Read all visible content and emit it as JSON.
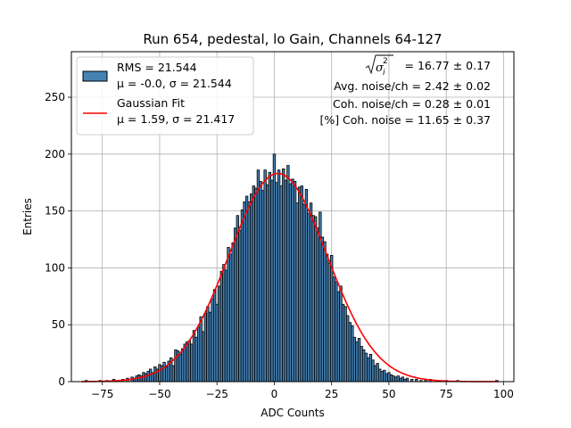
{
  "chart_data": {
    "type": "bar",
    "title": "Run 654, pedestal, lo Gain, Channels 64-127",
    "xlabel": "ADC Counts",
    "ylabel": "Entries",
    "xlim": [
      -88.5,
      104.5
    ],
    "ylim": [
      0,
      290
    ],
    "x_ticks": [
      "−75",
      "−50",
      "−25",
      "0",
      "25",
      "50",
      "75",
      "100"
    ],
    "y_ticks": [
      "0",
      "50",
      "100",
      "150",
      "200",
      "250"
    ],
    "x_tick_values": [
      -75,
      -50,
      -25,
      0,
      25,
      50,
      75,
      100
    ],
    "y_tick_values": [
      0,
      50,
      100,
      150,
      200,
      250
    ],
    "grid": true,
    "legend_position": "top-left",
    "histogram": {
      "name": "RMS = 21.544",
      "subtitle": "μ = -0.0, σ = 21.544",
      "color": "#4682b4",
      "bin_width": 1,
      "bins": [
        {
          "x": -82,
          "y": 1
        },
        {
          "x": -76,
          "y": 1
        },
        {
          "x": -73,
          "y": 1
        },
        {
          "x": -70,
          "y": 2
        },
        {
          "x": -68,
          "y": 1
        },
        {
          "x": -66,
          "y": 2
        },
        {
          "x": -64,
          "y": 3
        },
        {
          "x": -62,
          "y": 4
        },
        {
          "x": -61,
          "y": 3
        },
        {
          "x": -60,
          "y": 5
        },
        {
          "x": -59,
          "y": 6
        },
        {
          "x": -58,
          "y": 5
        },
        {
          "x": -57,
          "y": 8
        },
        {
          "x": -56,
          "y": 7
        },
        {
          "x": -55,
          "y": 9
        },
        {
          "x": -54,
          "y": 11
        },
        {
          "x": -53,
          "y": 8
        },
        {
          "x": -52,
          "y": 13
        },
        {
          "x": -51,
          "y": 11
        },
        {
          "x": -50,
          "y": 15
        },
        {
          "x": -49,
          "y": 14
        },
        {
          "x": -48,
          "y": 17
        },
        {
          "x": -47,
          "y": 13
        },
        {
          "x": -46,
          "y": 18
        },
        {
          "x": -45,
          "y": 21
        },
        {
          "x": -44,
          "y": 14
        },
        {
          "x": -43,
          "y": 28
        },
        {
          "x": -42,
          "y": 27
        },
        {
          "x": -41,
          "y": 24
        },
        {
          "x": -40,
          "y": 29
        },
        {
          "x": -39,
          "y": 33
        },
        {
          "x": -38,
          "y": 35
        },
        {
          "x": -37,
          "y": 36
        },
        {
          "x": -36,
          "y": 33
        },
        {
          "x": -35,
          "y": 45
        },
        {
          "x": -34,
          "y": 39
        },
        {
          "x": -33,
          "y": 48
        },
        {
          "x": -32,
          "y": 57
        },
        {
          "x": -31,
          "y": 44
        },
        {
          "x": -30,
          "y": 60
        },
        {
          "x": -29,
          "y": 66
        },
        {
          "x": -28,
          "y": 61
        },
        {
          "x": -27,
          "y": 73
        },
        {
          "x": -26,
          "y": 81
        },
        {
          "x": -25,
          "y": 68
        },
        {
          "x": -24,
          "y": 84
        },
        {
          "x": -23,
          "y": 97
        },
        {
          "x": -22,
          "y": 103
        },
        {
          "x": -21,
          "y": 98
        },
        {
          "x": -20,
          "y": 118
        },
        {
          "x": -19,
          "y": 112
        },
        {
          "x": -18,
          "y": 122
        },
        {
          "x": -17,
          "y": 135
        },
        {
          "x": -16,
          "y": 146
        },
        {
          "x": -15,
          "y": 133
        },
        {
          "x": -14,
          "y": 151
        },
        {
          "x": -13,
          "y": 158
        },
        {
          "x": -12,
          "y": 163
        },
        {
          "x": -11,
          "y": 158
        },
        {
          "x": -10,
          "y": 165
        },
        {
          "x": -9,
          "y": 172
        },
        {
          "x": -8,
          "y": 170
        },
        {
          "x": -7,
          "y": 186
        },
        {
          "x": -6,
          "y": 176
        },
        {
          "x": -5,
          "y": 168
        },
        {
          "x": -4,
          "y": 186
        },
        {
          "x": -3,
          "y": 173
        },
        {
          "x": -2,
          "y": 184
        },
        {
          "x": -1,
          "y": 177
        },
        {
          "x": 0,
          "y": 200
        },
        {
          "x": 1,
          "y": 175
        },
        {
          "x": 2,
          "y": 186
        },
        {
          "x": 3,
          "y": 172
        },
        {
          "x": 4,
          "y": 187
        },
        {
          "x": 5,
          "y": 177
        },
        {
          "x": 6,
          "y": 190
        },
        {
          "x": 7,
          "y": 174
        },
        {
          "x": 8,
          "y": 178
        },
        {
          "x": 9,
          "y": 176
        },
        {
          "x": 10,
          "y": 157
        },
        {
          "x": 11,
          "y": 171
        },
        {
          "x": 12,
          "y": 172
        },
        {
          "x": 13,
          "y": 156
        },
        {
          "x": 14,
          "y": 169
        },
        {
          "x": 15,
          "y": 148
        },
        {
          "x": 16,
          "y": 157
        },
        {
          "x": 17,
          "y": 146
        },
        {
          "x": 18,
          "y": 145
        },
        {
          "x": 19,
          "y": 135
        },
        {
          "x": 20,
          "y": 149
        },
        {
          "x": 21,
          "y": 127
        },
        {
          "x": 22,
          "y": 123
        },
        {
          "x": 23,
          "y": 112
        },
        {
          "x": 24,
          "y": 104
        },
        {
          "x": 25,
          "y": 111
        },
        {
          "x": 26,
          "y": 92
        },
        {
          "x": 27,
          "y": 88
        },
        {
          "x": 28,
          "y": 79
        },
        {
          "x": 29,
          "y": 84
        },
        {
          "x": 30,
          "y": 68
        },
        {
          "x": 31,
          "y": 66
        },
        {
          "x": 32,
          "y": 58
        },
        {
          "x": 33,
          "y": 52
        },
        {
          "x": 34,
          "y": 49
        },
        {
          "x": 35,
          "y": 39
        },
        {
          "x": 36,
          "y": 35
        },
        {
          "x": 37,
          "y": 38
        },
        {
          "x": 38,
          "y": 31
        },
        {
          "x": 39,
          "y": 28
        },
        {
          "x": 40,
          "y": 25
        },
        {
          "x": 41,
          "y": 21
        },
        {
          "x": 42,
          "y": 24
        },
        {
          "x": 43,
          "y": 19
        },
        {
          "x": 44,
          "y": 14
        },
        {
          "x": 45,
          "y": 16
        },
        {
          "x": 46,
          "y": 11
        },
        {
          "x": 47,
          "y": 9
        },
        {
          "x": 48,
          "y": 10
        },
        {
          "x": 49,
          "y": 7
        },
        {
          "x": 50,
          "y": 8
        },
        {
          "x": 51,
          "y": 6
        },
        {
          "x": 52,
          "y": 5
        },
        {
          "x": 53,
          "y": 4
        },
        {
          "x": 54,
          "y": 5
        },
        {
          "x": 55,
          "y": 3
        },
        {
          "x": 56,
          "y": 4
        },
        {
          "x": 57,
          "y": 2
        },
        {
          "x": 58,
          "y": 3
        },
        {
          "x": 60,
          "y": 2
        },
        {
          "x": 62,
          "y": 2
        },
        {
          "x": 64,
          "y": 1
        },
        {
          "x": 66,
          "y": 1
        },
        {
          "x": 68,
          "y": 2
        },
        {
          "x": 71,
          "y": 1
        },
        {
          "x": 75,
          "y": 1
        },
        {
          "x": 80,
          "y": 1
        },
        {
          "x": 97,
          "y": 1
        }
      ]
    },
    "fit": {
      "name": "Gaussian Fit",
      "subtitle": "μ = 1.59, σ = 21.417",
      "color": "#ff0000",
      "mu": 1.59,
      "sigma": 21.417,
      "amplitude": 183,
      "x_range": [
        -84,
        98
      ]
    },
    "stats": {
      "sigma_sq_value": "= 16.77 ± 0.17",
      "avg_noise": "Avg. noise/ch = 2.42 ± 0.02",
      "coh_noise": "Coh. noise/ch = 0.28 ± 0.01",
      "pct_coh_noise": "[%] Coh. noise = 11.65 ± 0.37"
    }
  }
}
